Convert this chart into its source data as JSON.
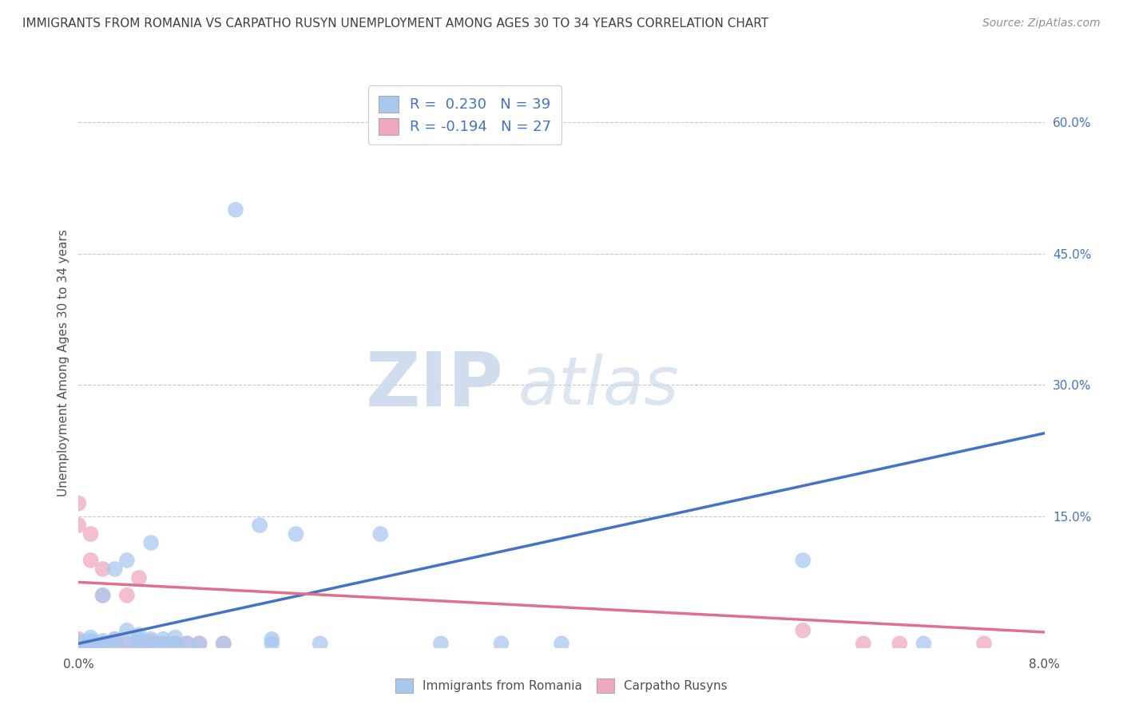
{
  "title": "IMMIGRANTS FROM ROMANIA VS CARPATHO RUSYN UNEMPLOYMENT AMONG AGES 30 TO 34 YEARS CORRELATION CHART",
  "source": "Source: ZipAtlas.com",
  "ylabel": "Unemployment Among Ages 30 to 34 years",
  "xlim": [
    0.0,
    0.08
  ],
  "ylim": [
    0.0,
    0.65
  ],
  "ytick_positions": [
    0.0,
    0.15,
    0.3,
    0.45,
    0.6
  ],
  "ytick_labels_right": [
    "",
    "15.0%",
    "30.0%",
    "45.0%",
    "60.0%"
  ],
  "watermark_zip": "ZIP",
  "watermark_atlas": "atlas",
  "legend_romania_label": "Immigrants from Romania",
  "legend_rusyn_label": "Carpatho Rusyns",
  "romania_R": 0.23,
  "romania_N": 39,
  "rusyn_R": -0.194,
  "rusyn_N": 27,
  "romania_color": "#a8c8f0",
  "rusyn_color": "#f0a8c0",
  "romania_line_color": "#4472c4",
  "rusyn_line_color": "#e07090",
  "romania_scatter": [
    [
      0.0,
      0.005
    ],
    [
      0.0,
      0.008
    ],
    [
      0.001,
      0.005
    ],
    [
      0.001,
      0.008
    ],
    [
      0.001,
      0.012
    ],
    [
      0.002,
      0.005
    ],
    [
      0.002,
      0.008
    ],
    [
      0.002,
      0.06
    ],
    [
      0.003,
      0.005
    ],
    [
      0.003,
      0.01
    ],
    [
      0.003,
      0.09
    ],
    [
      0.004,
      0.005
    ],
    [
      0.004,
      0.02
    ],
    [
      0.004,
      0.1
    ],
    [
      0.005,
      0.005
    ],
    [
      0.005,
      0.01
    ],
    [
      0.005,
      0.015
    ],
    [
      0.006,
      0.005
    ],
    [
      0.006,
      0.01
    ],
    [
      0.006,
      0.12
    ],
    [
      0.007,
      0.005
    ],
    [
      0.007,
      0.01
    ],
    [
      0.008,
      0.005
    ],
    [
      0.008,
      0.012
    ],
    [
      0.009,
      0.005
    ],
    [
      0.01,
      0.005
    ],
    [
      0.012,
      0.005
    ],
    [
      0.013,
      0.5
    ],
    [
      0.015,
      0.14
    ],
    [
      0.016,
      0.005
    ],
    [
      0.016,
      0.01
    ],
    [
      0.018,
      0.13
    ],
    [
      0.02,
      0.005
    ],
    [
      0.025,
      0.13
    ],
    [
      0.03,
      0.005
    ],
    [
      0.035,
      0.005
    ],
    [
      0.04,
      0.005
    ],
    [
      0.06,
      0.1
    ],
    [
      0.07,
      0.005
    ]
  ],
  "rusyn_scatter": [
    [
      0.0,
      0.005
    ],
    [
      0.0,
      0.01
    ],
    [
      0.0,
      0.14
    ],
    [
      0.0,
      0.165
    ],
    [
      0.001,
      0.005
    ],
    [
      0.001,
      0.1
    ],
    [
      0.001,
      0.13
    ],
    [
      0.002,
      0.005
    ],
    [
      0.002,
      0.06
    ],
    [
      0.002,
      0.09
    ],
    [
      0.003,
      0.005
    ],
    [
      0.003,
      0.01
    ],
    [
      0.004,
      0.005
    ],
    [
      0.004,
      0.06
    ],
    [
      0.005,
      0.005
    ],
    [
      0.005,
      0.08
    ],
    [
      0.006,
      0.005
    ],
    [
      0.006,
      0.008
    ],
    [
      0.007,
      0.005
    ],
    [
      0.008,
      0.005
    ],
    [
      0.009,
      0.005
    ],
    [
      0.01,
      0.005
    ],
    [
      0.012,
      0.005
    ],
    [
      0.06,
      0.02
    ],
    [
      0.065,
      0.005
    ],
    [
      0.068,
      0.005
    ],
    [
      0.075,
      0.005
    ]
  ],
  "background_color": "#ffffff",
  "grid_color": "#c8c8c8",
  "title_color": "#404040",
  "source_color": "#909090"
}
